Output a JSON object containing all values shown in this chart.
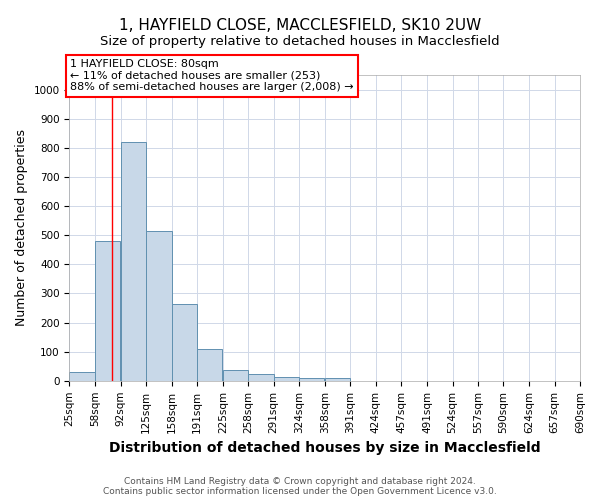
{
  "title1": "1, HAYFIELD CLOSE, MACCLESFIELD, SK10 2UW",
  "title2": "Size of property relative to detached houses in Macclesfield",
  "xlabel": "Distribution of detached houses by size in Macclesfield",
  "ylabel": "Number of detached properties",
  "footer1": "Contains HM Land Registry data © Crown copyright and database right 2024.",
  "footer2": "Contains public sector information licensed under the Open Government Licence v3.0.",
  "annotation_line1": "1 HAYFIELD CLOSE: 80sqm",
  "annotation_line2": "← 11% of detached houses are smaller (253)",
  "annotation_line3": "88% of semi-detached houses are larger (2,008) →",
  "bin_edges": [
    25,
    58,
    92,
    125,
    158,
    191,
    225,
    258,
    291,
    324,
    358,
    391,
    424,
    457,
    491,
    524,
    557,
    590,
    624,
    657,
    690
  ],
  "bar_heights": [
    30,
    480,
    820,
    515,
    265,
    110,
    38,
    22,
    12,
    8,
    8,
    0,
    0,
    0,
    0,
    0,
    0,
    0,
    0,
    0
  ],
  "bar_color": "#c8d8e8",
  "bar_edge_color": "#6090b0",
  "red_line_x": 80,
  "ylim": [
    0,
    1050
  ],
  "yticks": [
    0,
    100,
    200,
    300,
    400,
    500,
    600,
    700,
    800,
    900,
    1000
  ],
  "background_color": "#ffffff",
  "grid_color": "#d0d8e8",
  "title_fontsize": 11,
  "subtitle_fontsize": 9.5,
  "axis_label_fontsize": 9,
  "tick_fontsize": 7.5,
  "footer_fontsize": 6.5,
  "annotation_fontsize": 8
}
